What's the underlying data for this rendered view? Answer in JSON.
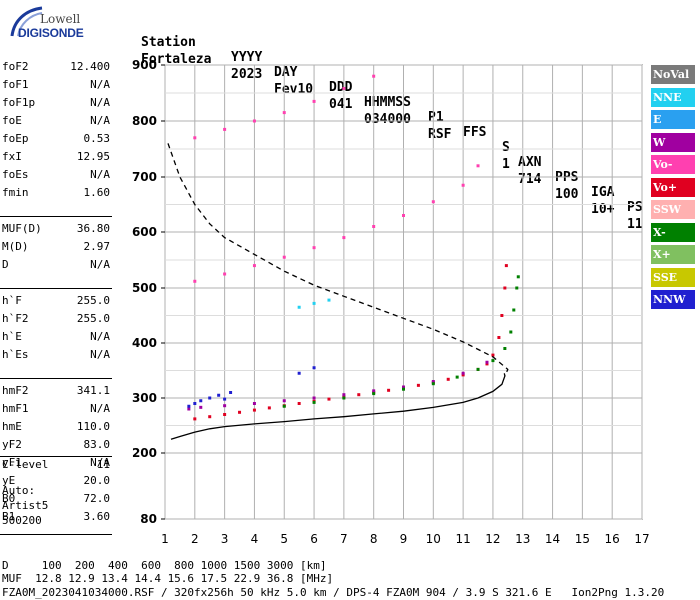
{
  "logo": {
    "top": "Lowell",
    "bottom": "DIGISONDE"
  },
  "header": {
    "labels": [
      "Station",
      "YYYY",
      "DAY",
      "DDD",
      "HHMMSS",
      "P1",
      "FFS",
      "S",
      "AXN",
      "PPS",
      "IGA",
      "PS"
    ],
    "values": [
      "Fortaleza",
      "2023",
      "Fev10",
      "041",
      "034000",
      "RSF",
      "",
      "1",
      "714",
      "100",
      "10+",
      "11"
    ]
  },
  "params": {
    "group1": [
      {
        "label": "foF2",
        "value": "12.400"
      },
      {
        "label": "foF1",
        "value": "N/A"
      },
      {
        "label": "foF1p",
        "value": "N/A"
      },
      {
        "label": "foE",
        "value": "N/A"
      },
      {
        "label": "foEp",
        "value": "0.53"
      },
      {
        "label": "fxI",
        "value": "12.95"
      },
      {
        "label": "foEs",
        "value": "N/A"
      },
      {
        "label": "fmin",
        "value": "1.60"
      }
    ],
    "group2": [
      {
        "label": "MUF(D)",
        "value": "36.80"
      },
      {
        "label": "M(D)",
        "value": "2.97"
      },
      {
        "label": "D",
        "value": "N/A"
      }
    ],
    "group3": [
      {
        "label": "h`F",
        "value": "255.0"
      },
      {
        "label": "h`F2",
        "value": "255.0"
      },
      {
        "label": "h`E",
        "value": "N/A"
      },
      {
        "label": "h`Es",
        "value": "N/A"
      }
    ],
    "group4": [
      {
        "label": "hmF2",
        "value": "341.1"
      },
      {
        "label": "hmF1",
        "value": "N/A"
      },
      {
        "label": "hmE",
        "value": "110.0"
      },
      {
        "label": "yF2",
        "value": "83.0"
      },
      {
        "label": "yF1",
        "value": "N/A"
      },
      {
        "label": "yE",
        "value": "20.0"
      },
      {
        "label": "B0",
        "value": "72.0"
      },
      {
        "label": "B1",
        "value": "3.60"
      }
    ],
    "clevel": {
      "label": "C-level",
      "value": "11"
    },
    "auto": [
      "Auto:",
      "Artist5",
      "500200"
    ]
  },
  "legend": [
    {
      "label": "NoVal",
      "color": "#7a7a7a"
    },
    {
      "label": "NNE",
      "color": "#22d0f0"
    },
    {
      "label": "E",
      "color": "#2aa0f0"
    },
    {
      "label": "W",
      "color": "#a000a0"
    },
    {
      "label": "Vo-",
      "color": "#ff40b0"
    },
    {
      "label": "Vo+",
      "color": "#e00020"
    },
    {
      "label": "SSW",
      "color": "#ffb0b0"
    },
    {
      "label": "X-",
      "color": "#008000"
    },
    {
      "label": "X+",
      "color": "#80c060"
    },
    {
      "label": "SSE",
      "color": "#c8c800"
    },
    {
      "label": "NNW",
      "color": "#2020d0"
    }
  ],
  "footer": {
    "line1": "D     100  200  400  600  800 1000 1500 3000 [km]",
    "line2": "MUF  12.8 12.9 13.4 14.4 15.6 17.5 22.9 36.8 [MHz]",
    "line3": "FZA0M_2023041034000.RSF / 320fx256h 50 kHz 5.0 km / DPS-4 FZA0M 904 / 3.9 S 321.6 E   Ion2Png 1.3.20"
  },
  "chart_data": {
    "type": "scatter",
    "x_ticks": [
      1,
      2,
      3,
      4,
      5,
      6,
      7,
      8,
      9,
      10,
      11,
      12,
      13,
      14,
      15,
      16,
      17
    ],
    "y_ticks": [
      80,
      200,
      300,
      400,
      500,
      600,
      700,
      800,
      900
    ],
    "xlim": [
      1,
      17
    ],
    "ylim": [
      80,
      900
    ],
    "y_scale": "non-linear (80 at base)",
    "grid": true,
    "series": [
      {
        "type": "scatter",
        "color": "#e00020",
        "points": [
          [
            2.0,
            262
          ],
          [
            2.5,
            266
          ],
          [
            3.0,
            270
          ],
          [
            3.5,
            274
          ],
          [
            4.0,
            278
          ],
          [
            4.5,
            282
          ],
          [
            5.0,
            286
          ],
          [
            5.5,
            290
          ],
          [
            6.0,
            294
          ],
          [
            6.5,
            298
          ],
          [
            7.0,
            302
          ],
          [
            7.5,
            306
          ],
          [
            8.0,
            310
          ],
          [
            8.5,
            314
          ],
          [
            9.0,
            318
          ],
          [
            9.5,
            323
          ],
          [
            10.0,
            328
          ],
          [
            10.5,
            334
          ],
          [
            11.0,
            342
          ],
          [
            11.5,
            352
          ],
          [
            11.8,
            362
          ],
          [
            12.0,
            378
          ],
          [
            12.2,
            410
          ],
          [
            12.3,
            450
          ],
          [
            12.4,
            500
          ],
          [
            12.45,
            540
          ]
        ]
      },
      {
        "type": "scatter",
        "color": "#a000a0",
        "points": [
          [
            1.8,
            280
          ],
          [
            2.2,
            283
          ],
          [
            3.0,
            286
          ],
          [
            4.0,
            290
          ],
          [
            5.0,
            295
          ],
          [
            6.0,
            300
          ],
          [
            7.0,
            306
          ],
          [
            8.0,
            313
          ],
          [
            9.0,
            320
          ],
          [
            10.0,
            330
          ],
          [
            11.0,
            345
          ],
          [
            11.8,
            365
          ]
        ]
      },
      {
        "type": "scatter",
        "color": "#008000",
        "points": [
          [
            5.0,
            285
          ],
          [
            6.0,
            292
          ],
          [
            7.0,
            300
          ],
          [
            8.0,
            308
          ],
          [
            9.0,
            316
          ],
          [
            10.0,
            326
          ],
          [
            10.8,
            338
          ],
          [
            11.5,
            352
          ],
          [
            12.0,
            368
          ],
          [
            12.4,
            390
          ],
          [
            12.6,
            420
          ],
          [
            12.7,
            460
          ],
          [
            12.8,
            500
          ],
          [
            12.85,
            520
          ]
        ]
      },
      {
        "type": "scatter",
        "color": "#2020d0",
        "points": [
          [
            1.8,
            285
          ],
          [
            2.0,
            290
          ],
          [
            2.2,
            295
          ],
          [
            2.5,
            300
          ],
          [
            2.8,
            305
          ],
          [
            3.0,
            298
          ],
          [
            3.2,
            310
          ],
          [
            5.5,
            345
          ],
          [
            6.0,
            355
          ]
        ]
      },
      {
        "type": "scatter",
        "color": "#ff40b0",
        "points": [
          [
            2.0,
            512
          ],
          [
            3.0,
            525
          ],
          [
            4.0,
            540
          ],
          [
            5.0,
            555
          ],
          [
            6.0,
            572
          ],
          [
            7.0,
            590
          ],
          [
            8.0,
            610
          ],
          [
            9.0,
            630
          ],
          [
            10.0,
            655
          ],
          [
            11.0,
            685
          ],
          [
            11.5,
            720
          ],
          [
            2.0,
            770
          ],
          [
            3.0,
            785
          ],
          [
            4.0,
            800
          ],
          [
            5.0,
            815
          ],
          [
            6.0,
            835
          ],
          [
            7.0,
            858
          ],
          [
            8.0,
            880
          ]
        ]
      },
      {
        "type": "scatter",
        "color": "#22d0f0",
        "points": [
          [
            5.5,
            465
          ],
          [
            6.0,
            472
          ],
          [
            6.5,
            478
          ]
        ]
      }
    ],
    "lines": [
      {
        "name": "",
        "style": "solid",
        "color": "#000000",
        "points": [
          [
            1.2,
            225
          ],
          [
            1.5,
            230
          ],
          [
            2.0,
            238
          ],
          [
            2.5,
            244
          ],
          [
            3.0,
            248
          ],
          [
            4.0,
            253
          ],
          [
            5.0,
            257
          ],
          [
            6.0,
            262
          ],
          [
            7.0,
            266
          ],
          [
            8.0,
            271
          ],
          [
            9.0,
            276
          ],
          [
            10.0,
            283
          ],
          [
            11.0,
            292
          ],
          [
            11.5,
            300
          ],
          [
            12.0,
            312
          ],
          [
            12.3,
            325
          ],
          [
            12.4,
            340
          ],
          [
            12.38,
            345
          ]
        ]
      },
      {
        "name": "",
        "style": "dashed",
        "color": "#000000",
        "points": [
          [
            1.1,
            760
          ],
          [
            1.5,
            700
          ],
          [
            2.0,
            650
          ],
          [
            2.5,
            615
          ],
          [
            3.0,
            590
          ],
          [
            4.0,
            560
          ],
          [
            5.0,
            530
          ],
          [
            6.0,
            505
          ],
          [
            7.0,
            485
          ],
          [
            8.0,
            465
          ],
          [
            9.0,
            445
          ],
          [
            10.0,
            425
          ],
          [
            11.0,
            402
          ],
          [
            12.0,
            375
          ],
          [
            12.5,
            352
          ],
          [
            12.4,
            340
          ]
        ]
      }
    ]
  }
}
